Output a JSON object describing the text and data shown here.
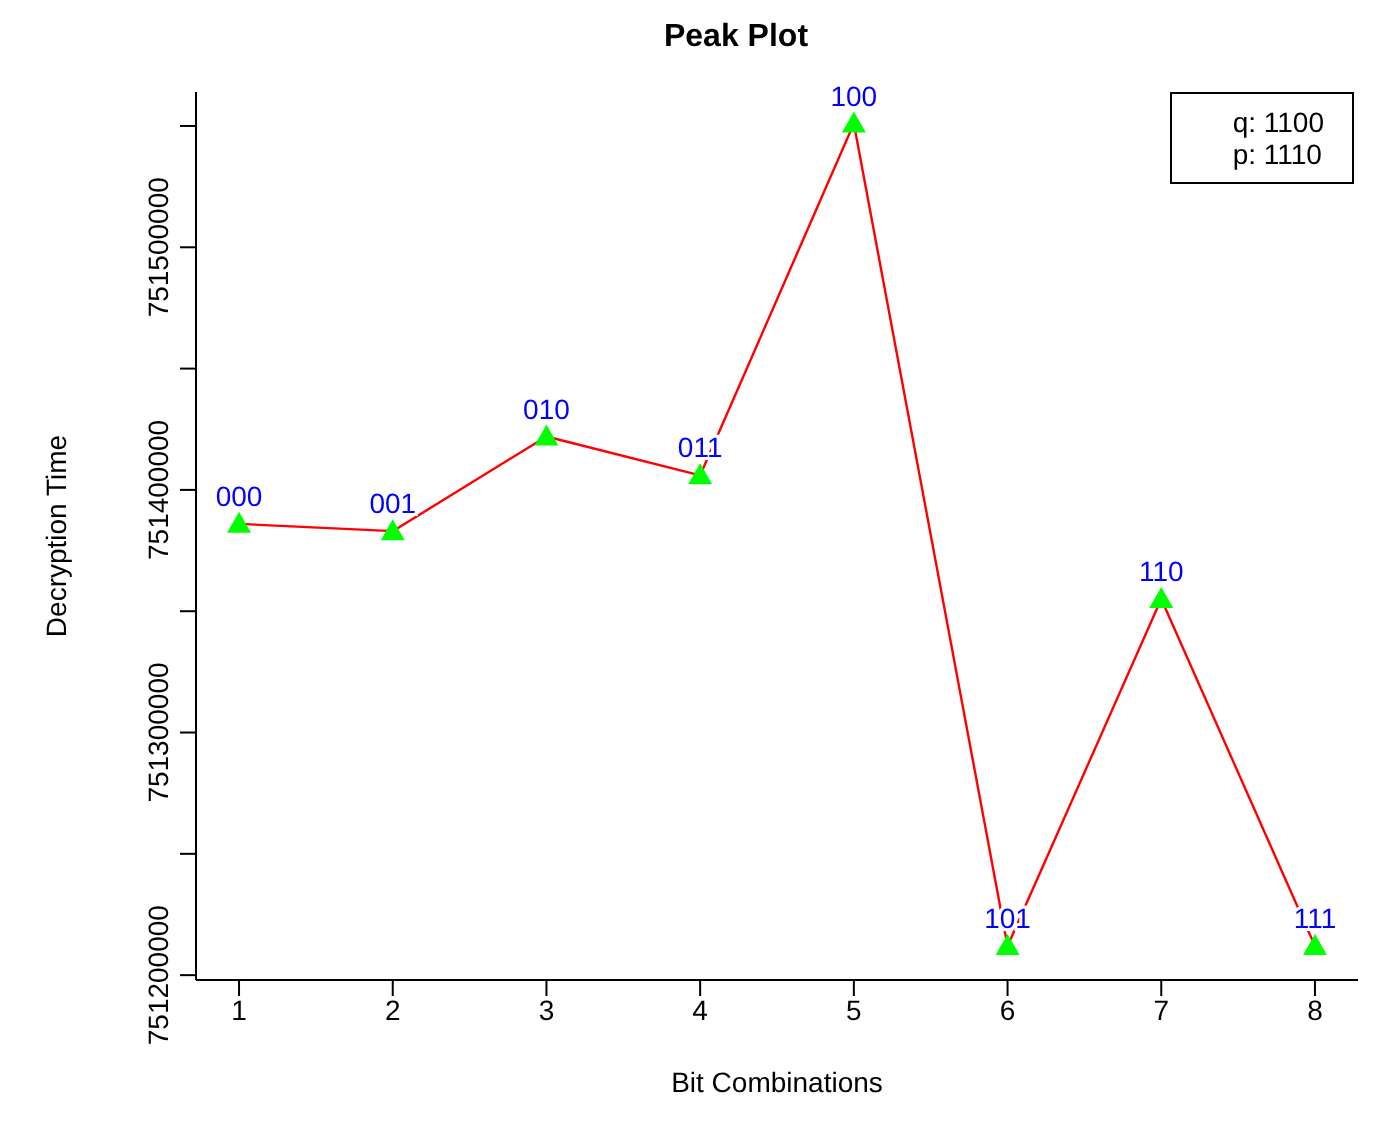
{
  "chart_data": {
    "type": "line",
    "title": "Peak Plot",
    "xlabel": "Bit Combinations",
    "ylabel": "Decryption Time",
    "x": [
      1,
      2,
      3,
      4,
      5,
      6,
      7,
      8
    ],
    "series": [
      {
        "color": "#ff0000",
        "colors": [
          "#00ff00",
          "#00ff00",
          "#00ff00",
          "#00ff00",
          "#00ff00",
          "#00ff00",
          "#00ff00",
          "#00ff00"
        ],
        "values": [
          751386000,
          751383000,
          751422000,
          751406000,
          751551000,
          751212000,
          751355000,
          751212000
        ]
      }
    ],
    "marker": "triangle",
    "line_style": "solid",
    "xlim": [
      0.72,
      8.28
    ],
    "xticks": [
      1,
      2,
      3,
      4,
      5,
      6,
      7,
      8
    ],
    "ylim": [
      751198000,
      751564000
    ],
    "yticks": [
      751200000,
      {
        "value": 751250000,
        "label": null
      },
      751300000,
      {
        "value": 751350000,
        "label": null
      },
      751400000,
      {
        "value": 751450000,
        "label": null
      },
      751500000,
      {
        "value": 751550000,
        "label": null
      }
    ],
    "legend": false,
    "annotations": [
      {
        "text": "000",
        "x": 1,
        "y": 751386000
      },
      {
        "text": "001",
        "x": 2,
        "y": 751383000
      },
      {
        "text": "010",
        "x": 3,
        "y": 751422000
      },
      {
        "text": "011",
        "x": 4,
        "y": 751406000
      },
      {
        "text": "100",
        "x": 5,
        "y": 751551000
      },
      {
        "text": "101",
        "x": 6,
        "y": 751212000
      },
      {
        "text": "110",
        "x": 7,
        "y": 751355000
      },
      {
        "text": "111",
        "x": 8,
        "y": 751212000
      },
      "q: 1100",
      "p: 1110"
    ]
  }
}
